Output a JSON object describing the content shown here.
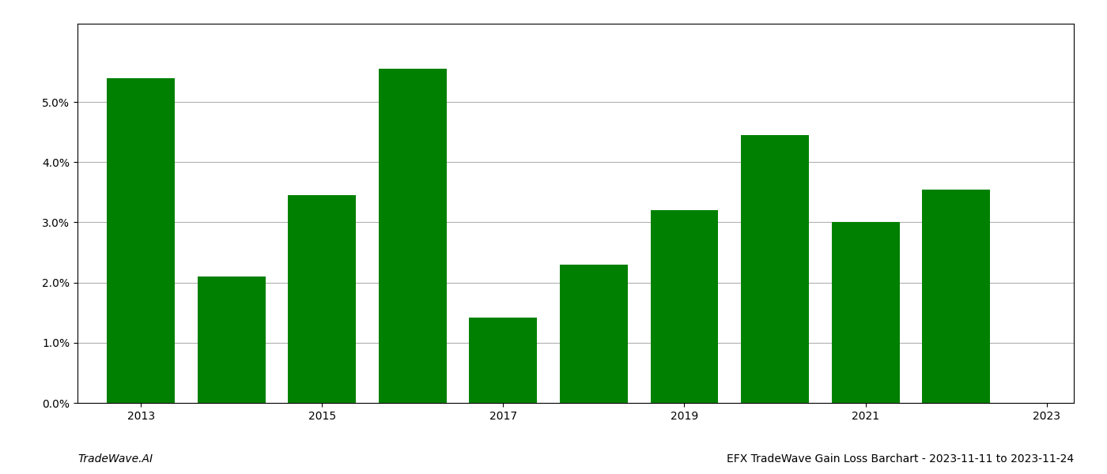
{
  "chart_data": {
    "type": "bar",
    "x": [
      2013,
      2014,
      2015,
      2016,
      2017,
      2018,
      2019,
      2020,
      2021,
      2022
    ],
    "values": [
      0.054,
      0.021,
      0.0345,
      0.0555,
      0.0142,
      0.023,
      0.032,
      0.0445,
      0.03,
      0.0355
    ],
    "color": "#008000",
    "xlim": [
      2012.3,
      2023.3
    ],
    "xticks": [
      2013,
      2015,
      2017,
      2019,
      2021,
      2023
    ],
    "ylim": [
      0,
      0.063
    ],
    "yticks": [
      {
        "value": 0.0,
        "label": "0.0%"
      },
      {
        "value": 0.01,
        "label": "1.0%"
      },
      {
        "value": 0.02,
        "label": "2.0%"
      },
      {
        "value": 0.03,
        "label": "3.0%"
      },
      {
        "value": 0.04,
        "label": "4.0%"
      },
      {
        "value": 0.05,
        "label": "5.0%"
      }
    ],
    "grid": true,
    "annotations": [
      "TradeWave.AI",
      "EFX TradeWave Gain Loss Barchart - 2023-11-11 to 2023-11-24"
    ]
  }
}
